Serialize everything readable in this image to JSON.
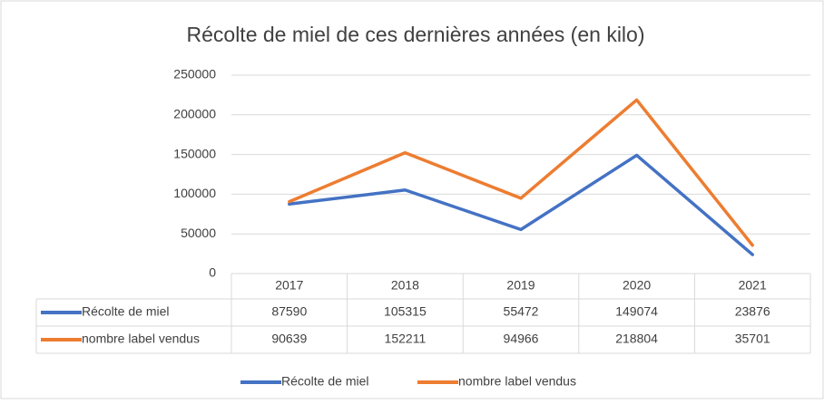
{
  "chart_data": {
    "type": "line",
    "title": "Récolte de miel de ces dernières années (en kilo)",
    "categories": [
      "2017",
      "2018",
      "2019",
      "2020",
      "2021"
    ],
    "series": [
      {
        "name": "Récolte de miel",
        "color": "#4472c4",
        "values": [
          87590,
          105315,
          55472,
          149074,
          23876
        ]
      },
      {
        "name": "nombre label vendus",
        "color": "#ed7d31",
        "values": [
          90639,
          152211,
          94966,
          218804,
          35701
        ]
      }
    ],
    "ylim": [
      0,
      250000
    ],
    "yticks": [
      0,
      50000,
      100000,
      150000,
      200000,
      250000
    ],
    "grid": true,
    "legend": "bottom"
  }
}
